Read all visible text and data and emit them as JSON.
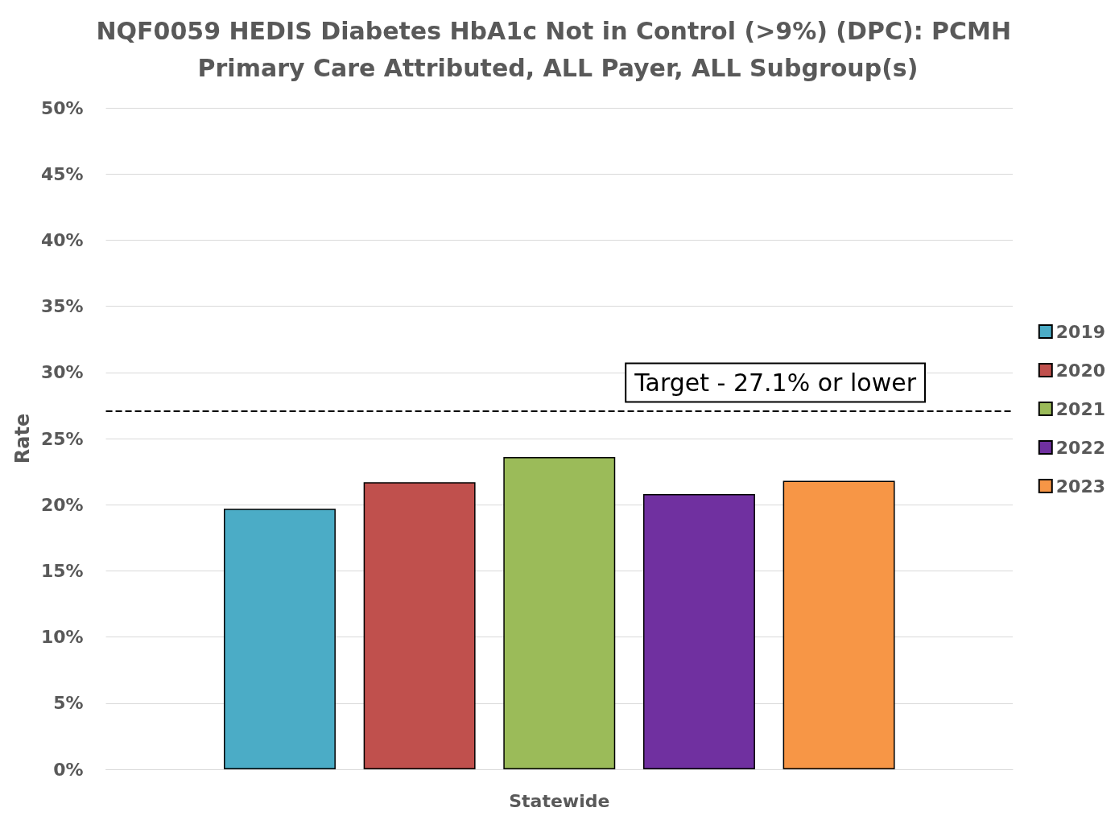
{
  "chart_data": {
    "type": "bar",
    "title": "NQF0059 HEDIS Diabetes HbA1c Not in Control (>9%) (DPC): PCMH Primary Care Attributed, ALL Payer, ALL Subgroup(s)",
    "ylabel": "Rate",
    "categories": [
      "Statewide"
    ],
    "series": [
      {
        "name": "2019",
        "color": "#4bacc6",
        "values": [
          19.7
        ]
      },
      {
        "name": "2020",
        "color": "#c0504d",
        "values": [
          21.7
        ]
      },
      {
        "name": "2021",
        "color": "#9bbb59",
        "values": [
          23.6
        ]
      },
      {
        "name": "2022",
        "color": "#7030a0",
        "values": [
          20.8
        ]
      },
      {
        "name": "2023",
        "color": "#f79646",
        "values": [
          21.8
        ]
      }
    ],
    "ylim": [
      0,
      50
    ],
    "yticks": [
      {
        "value": 0,
        "label": "0%"
      },
      {
        "value": 5,
        "label": "5%"
      },
      {
        "value": 10,
        "label": "10%"
      },
      {
        "value": 15,
        "label": "15%"
      },
      {
        "value": 20,
        "label": "20%"
      },
      {
        "value": 25,
        "label": "25%"
      },
      {
        "value": 30,
        "label": "30%"
      },
      {
        "value": 35,
        "label": "35%"
      },
      {
        "value": 40,
        "label": "40%"
      },
      {
        "value": 45,
        "label": "45%"
      },
      {
        "value": 50,
        "label": "50%"
      }
    ],
    "ref_lines": [
      {
        "axis": "y",
        "value": 27.1,
        "label": "Target - 27.1% or lower",
        "color": "#000000",
        "line_style": "dashed"
      }
    ],
    "grid": "y",
    "legend": "right"
  }
}
